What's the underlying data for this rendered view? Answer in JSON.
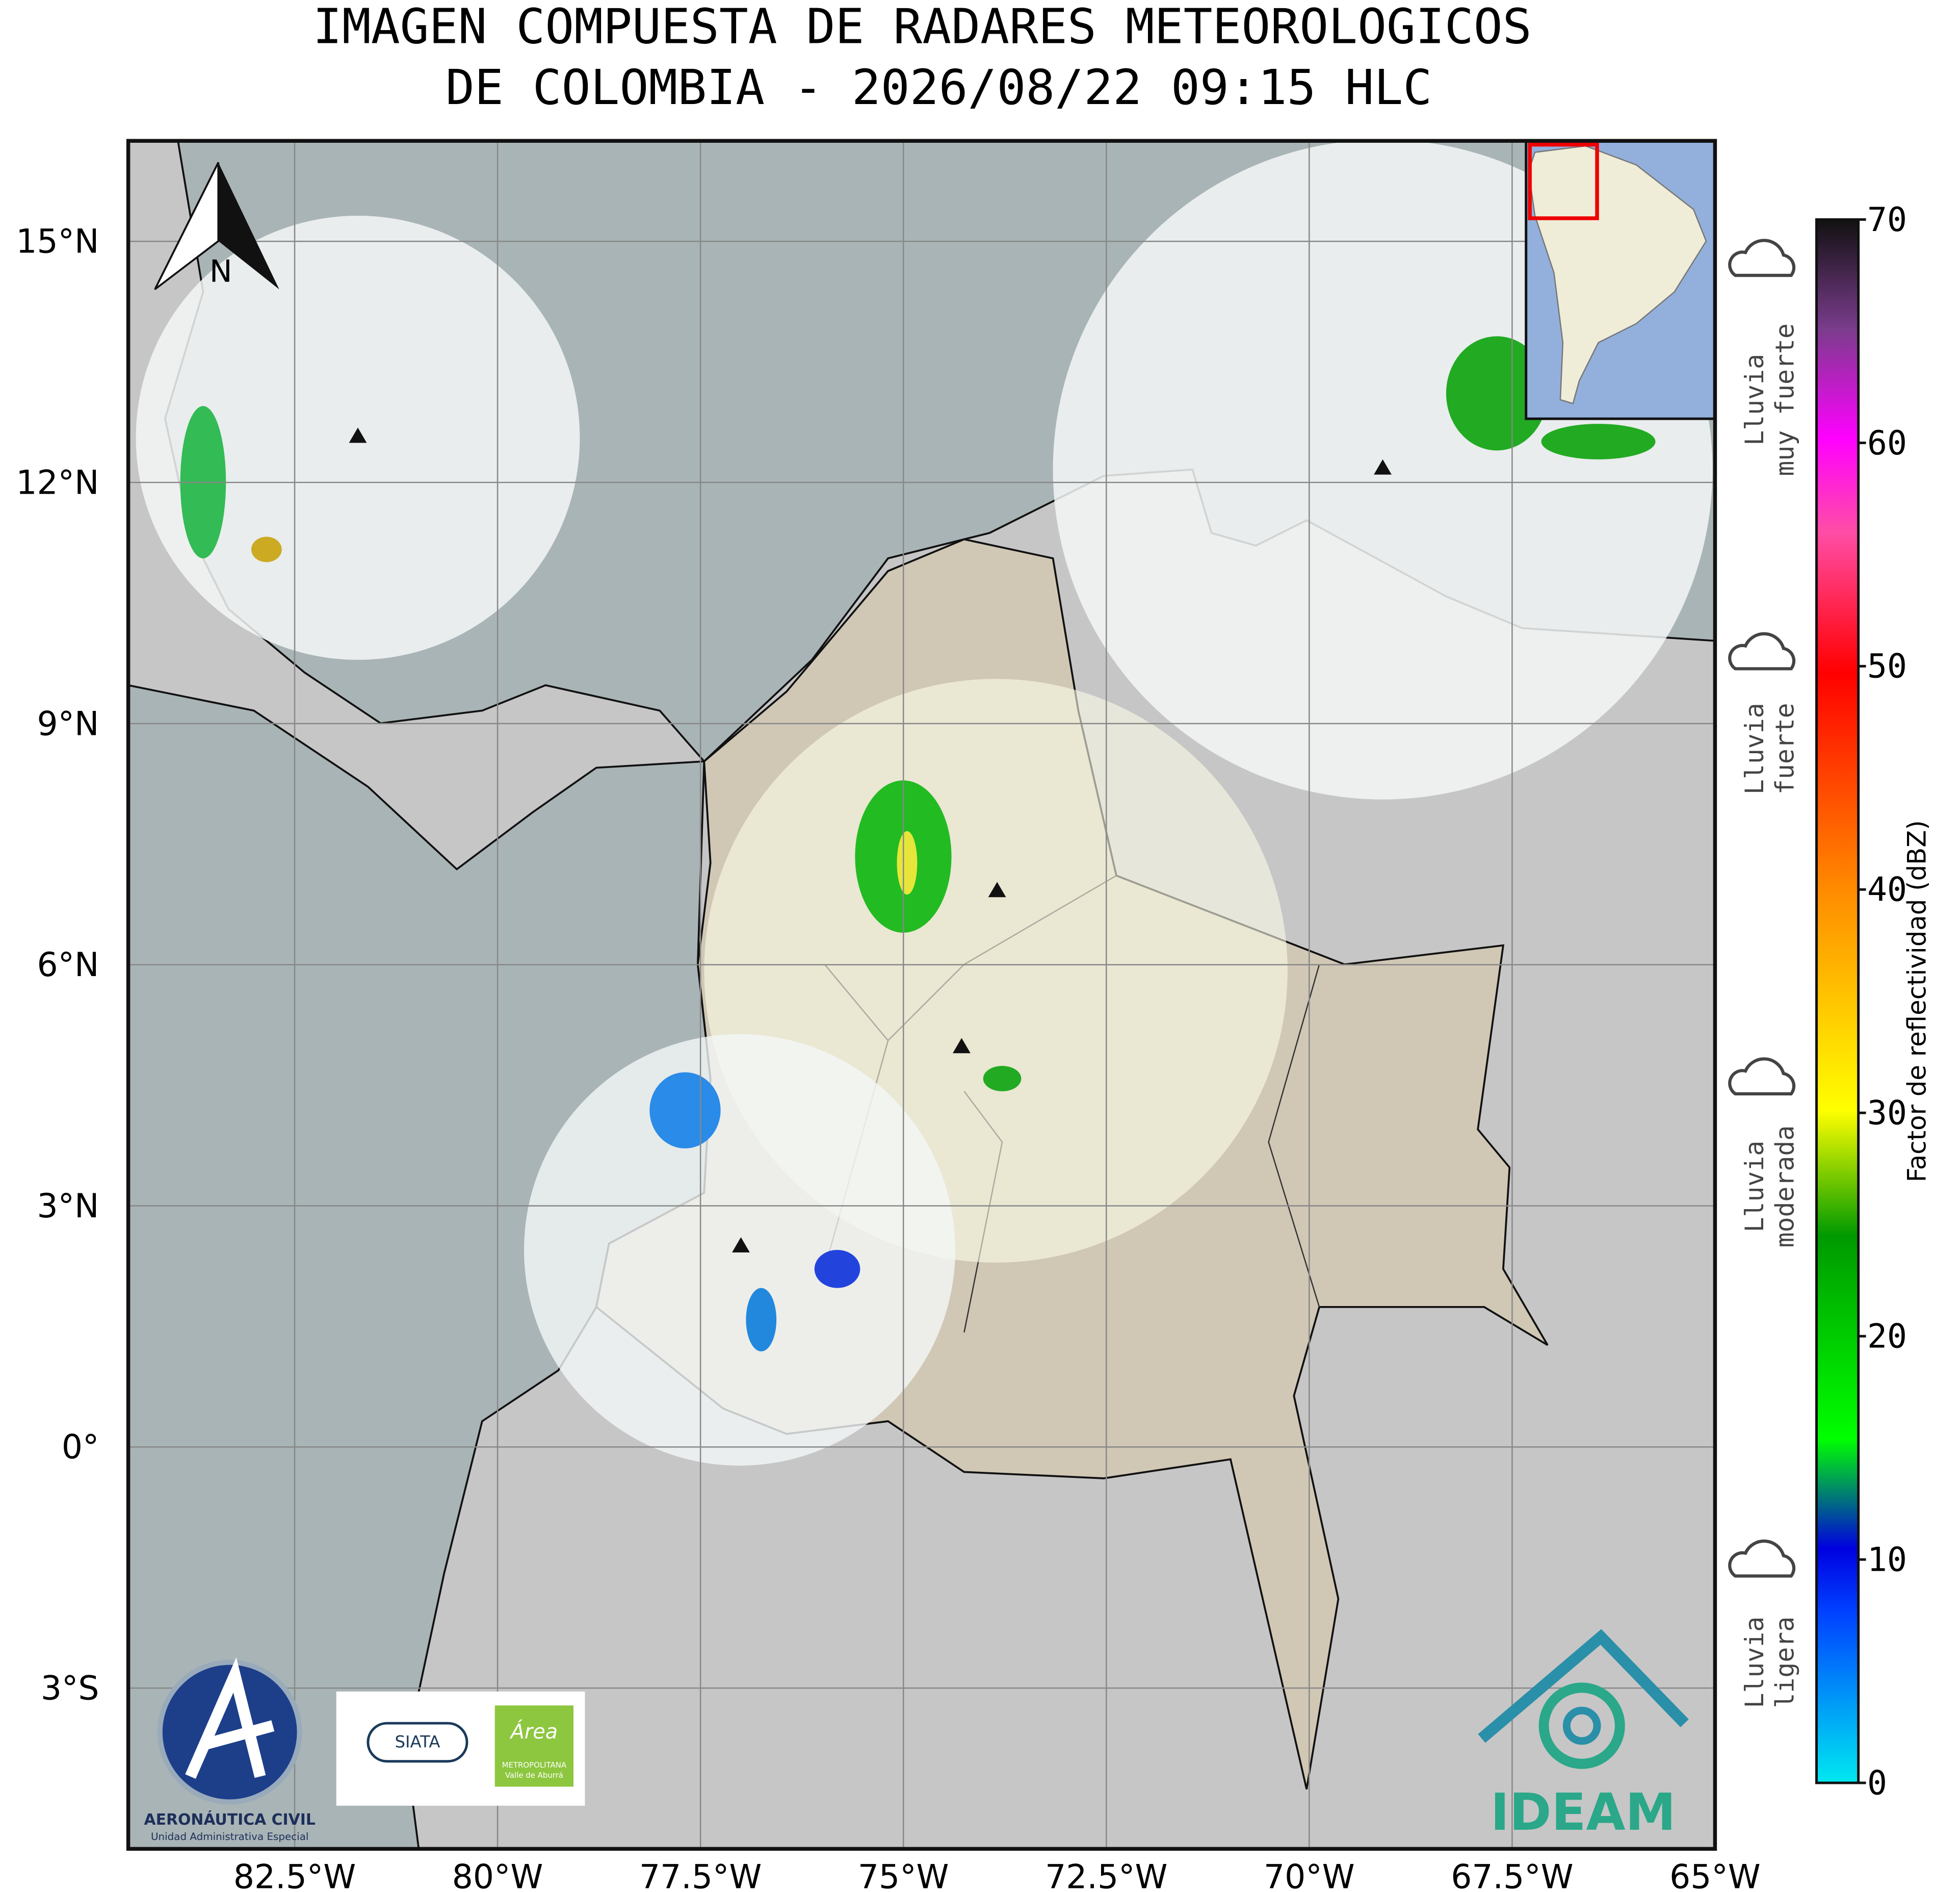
{
  "title": [
    "IMAGEN COMPUESTA DE RADARES METEOROLOGICOS",
    "DE COLOMBIA - 2026/08/22 09:15 HLC"
  ],
  "map": {
    "lon_range": [
      -84.55,
      -65
    ],
    "lat_range": [
      -5.0,
      16.25
    ],
    "lon_ticks": [
      {
        "value": -82.5,
        "label": "82.5°W"
      },
      {
        "value": -80,
        "label": "80°W"
      },
      {
        "value": -77.5,
        "label": "77.5°W"
      },
      {
        "value": -75,
        "label": "75°W"
      },
      {
        "value": -72.5,
        "label": "72.5°W"
      },
      {
        "value": -70,
        "label": "70°W"
      },
      {
        "value": -67.5,
        "label": "67.5°W"
      },
      {
        "value": -65,
        "label": "65°W"
      }
    ],
    "lat_ticks": [
      {
        "value": 15,
        "label": "15°N"
      },
      {
        "value": 12,
        "label": "12°N"
      },
      {
        "value": 9,
        "label": "9°N"
      },
      {
        "value": 6,
        "label": "6°N"
      },
      {
        "value": 3,
        "label": "3°N"
      },
      {
        "value": 0,
        "label": "0°"
      },
      {
        "value": -3,
        "label": "3°S"
      }
    ],
    "north_label": "N"
  },
  "colorbar": {
    "label": "Factor de reflectividad (dBZ)",
    "range": [
      0,
      70
    ],
    "ticks": [
      0,
      10,
      20,
      30,
      40,
      50,
      60,
      70
    ]
  },
  "rain_categories": [
    {
      "lines": [
        "Lluvia",
        "muy fuerte"
      ]
    },
    {
      "lines": [
        "Lluvia",
        "fuerte"
      ]
    },
    {
      "lines": [
        "Lluvia",
        "moderada"
      ]
    },
    {
      "lines": [
        "Lluvia",
        "ligera"
      ]
    }
  ],
  "logos": {
    "aerocivil": [
      "AERONÁUTICA CIVIL",
      "Unidad Administrativa Especial"
    ],
    "siata": "SIATA",
    "area": [
      "Área",
      "METROPOLITANA",
      "Valle de Aburrá"
    ],
    "ideam": "IDEAM"
  }
}
